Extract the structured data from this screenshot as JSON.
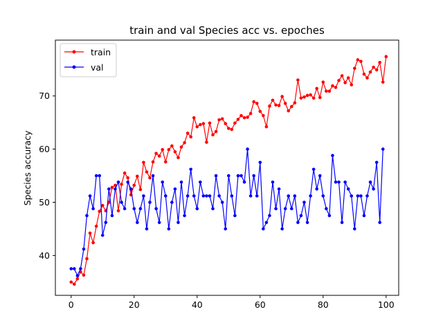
{
  "chart_data": {
    "type": "line",
    "title": "train and val Species acc vs. epoches",
    "xlabel": "",
    "ylabel": "Species accuracy",
    "xlim": [
      -5,
      104
    ],
    "ylim": [
      32.5,
      80.5
    ],
    "xticks": [
      0,
      20,
      40,
      60,
      80,
      100
    ],
    "yticks": [
      40,
      50,
      60,
      70
    ],
    "grid": false,
    "legend_position": "top-left",
    "series": [
      {
        "name": "train",
        "color": "#ff0000",
        "marker": "circle",
        "values": [
          35.0,
          34.6,
          35.6,
          36.9,
          36.3,
          39.4,
          44.2,
          42.4,
          45.5,
          48.3,
          49.4,
          48.4,
          50.0,
          52.8,
          53.2,
          48.4,
          53.4,
          55.5,
          54.6,
          51.4,
          53.2,
          54.9,
          52.4,
          57.5,
          55.7,
          54.6,
          57.6,
          59.2,
          58.7,
          59.9,
          57.6,
          59.9,
          60.6,
          59.5,
          58.4,
          60.4,
          61.2,
          63.0,
          62.3,
          65.9,
          64.2,
          64.6,
          64.8,
          61.3,
          64.9,
          62.7,
          63.3,
          65.5,
          65.7,
          64.8,
          63.9,
          63.7,
          64.9,
          65.6,
          66.3,
          65.9,
          66.0,
          66.7,
          68.9,
          68.6,
          67.1,
          66.3,
          64.2,
          68.1,
          69.2,
          68.3,
          68.2,
          69.9,
          68.6,
          67.2,
          68.0,
          68.7,
          73.0,
          69.6,
          69.8,
          70.1,
          70.2,
          69.6,
          71.4,
          69.7,
          72.6,
          70.9,
          70.9,
          71.9,
          71.6,
          72.9,
          73.8,
          72.5,
          73.4,
          72.1,
          75.2,
          76.8,
          76.5,
          74.1,
          73.4,
          74.5,
          75.4,
          74.9,
          76.3,
          72.6,
          77.4
        ]
      },
      {
        "name": "val",
        "color": "#0000ff",
        "marker": "circle",
        "values": [
          37.5,
          37.5,
          36.2,
          37.5,
          41.2,
          47.5,
          51.2,
          48.8,
          55.0,
          55.0,
          43.8,
          46.2,
          52.5,
          47.5,
          52.5,
          53.8,
          50.0,
          48.8,
          53.8,
          52.5,
          48.8,
          46.2,
          48.8,
          51.2,
          45.0,
          50.0,
          55.0,
          48.8,
          46.2,
          53.8,
          51.2,
          45.0,
          50.0,
          52.5,
          46.2,
          53.8,
          47.5,
          51.2,
          56.2,
          51.2,
          48.8,
          53.8,
          51.2,
          51.2,
          51.2,
          48.8,
          55.0,
          51.2,
          50.0,
          45.0,
          55.0,
          51.2,
          47.5,
          55.0,
          55.0,
          53.8,
          60.0,
          51.2,
          55.0,
          51.2,
          57.5,
          45.0,
          46.2,
          47.5,
          53.8,
          48.8,
          52.5,
          45.0,
          48.8,
          51.2,
          48.8,
          51.2,
          46.2,
          47.5,
          50.0,
          46.2,
          51.2,
          56.2,
          52.5,
          55.0,
          51.2,
          48.8,
          47.5,
          58.8,
          53.8,
          53.8,
          46.2,
          53.8,
          52.5,
          51.2,
          45.0,
          51.2,
          51.2,
          47.5,
          51.2,
          53.8,
          52.5,
          57.5,
          46.2,
          60.0
        ]
      }
    ]
  }
}
